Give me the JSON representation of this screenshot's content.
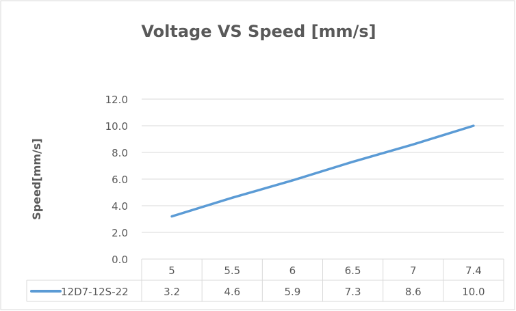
{
  "chart_data": {
    "type": "line",
    "title": "Voltage VS Speed [mm/s]",
    "xlabel": "",
    "ylabel": "Speed[mm/s]",
    "categories": [
      "5",
      "5.5",
      "6",
      "6.5",
      "7",
      "7.4"
    ],
    "series": [
      {
        "name": "12D7-12S-22",
        "values": [
          3.2,
          4.6,
          5.9,
          7.3,
          8.6,
          10.0
        ],
        "labels": [
          "3.2",
          "4.6",
          "5.9",
          "7.3",
          "8.6",
          "10.0"
        ],
        "color": "#5B9BD5"
      }
    ],
    "ylim": [
      0,
      12
    ],
    "yticks": [
      "0.0",
      "2.0",
      "4.0",
      "6.0",
      "8.0",
      "10.0",
      "12.0"
    ],
    "grid": true,
    "legend": "data-table"
  }
}
